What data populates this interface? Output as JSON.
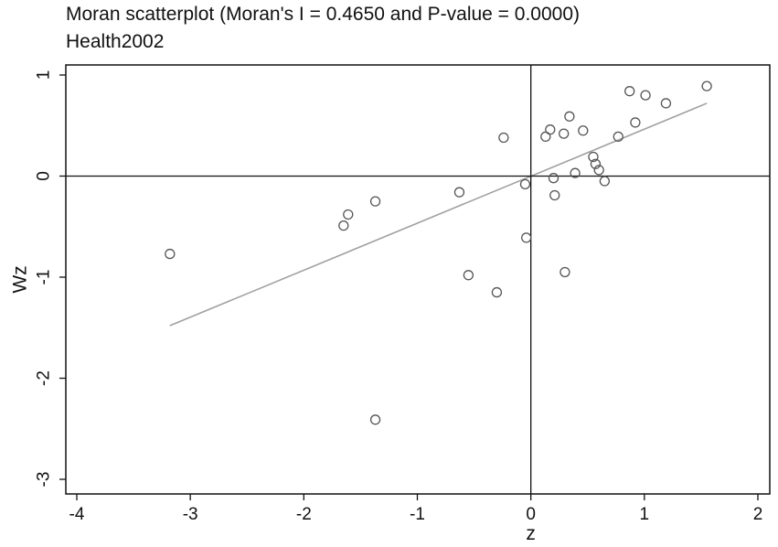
{
  "chart_data": {
    "type": "scatter",
    "title": "Moran scatterplot (Moran's I = 0.4650 and P-value = 0.0000)",
    "subtitle": "Health2002",
    "xlabel": "z",
    "ylabel": "Wz",
    "xlim": [
      -4,
      2
    ],
    "ylim": [
      -3,
      1
    ],
    "xticks": [
      "-4",
      "-3",
      "-2",
      "-1",
      "0",
      "1",
      "2"
    ],
    "yticks": [
      "-3",
      "-2",
      "-1",
      "0",
      "1"
    ],
    "grid": false,
    "legend": "none",
    "reference_lines": {
      "x": 0,
      "y": 0
    },
    "fit_line": {
      "x": [
        -3.18,
        1.55
      ],
      "y": [
        -1.48,
        0.72
      ]
    },
    "points": [
      {
        "x": -3.18,
        "y": -0.77
      },
      {
        "x": -1.65,
        "y": -0.49
      },
      {
        "x": -1.61,
        "y": -0.38
      },
      {
        "x": -1.37,
        "y": -0.25
      },
      {
        "x": -1.37,
        "y": -2.41
      },
      {
        "x": -0.63,
        "y": -0.16
      },
      {
        "x": -0.55,
        "y": -0.98
      },
      {
        "x": -0.3,
        "y": -1.15
      },
      {
        "x": -0.24,
        "y": 0.38
      },
      {
        "x": -0.05,
        "y": -0.08
      },
      {
        "x": -0.04,
        "y": -0.61
      },
      {
        "x": 0.13,
        "y": 0.39
      },
      {
        "x": 0.17,
        "y": 0.46
      },
      {
        "x": 0.2,
        "y": -0.02
      },
      {
        "x": 0.21,
        "y": -0.19
      },
      {
        "x": 0.29,
        "y": 0.42
      },
      {
        "x": 0.3,
        "y": -0.95
      },
      {
        "x": 0.34,
        "y": 0.59
      },
      {
        "x": 0.39,
        "y": 0.03
      },
      {
        "x": 0.46,
        "y": 0.45
      },
      {
        "x": 0.55,
        "y": 0.19
      },
      {
        "x": 0.57,
        "y": 0.12
      },
      {
        "x": 0.6,
        "y": 0.06
      },
      {
        "x": 0.65,
        "y": -0.05
      },
      {
        "x": 0.77,
        "y": 0.39
      },
      {
        "x": 0.87,
        "y": 0.84
      },
      {
        "x": 0.92,
        "y": 0.53
      },
      {
        "x": 1.01,
        "y": 0.8
      },
      {
        "x": 1.19,
        "y": 0.72
      },
      {
        "x": 1.55,
        "y": 0.89
      }
    ],
    "colors": {
      "points": "#555555",
      "fit_line": "#a0a0a0",
      "axes": "#111111"
    }
  }
}
